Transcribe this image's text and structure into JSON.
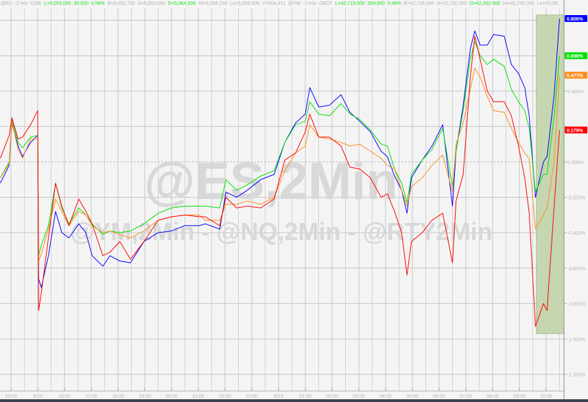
{
  "header": {
    "es": {
      "symbol": "@ES - 2 min",
      "exchange": "CME",
      "last": "L=6,053.000",
      "change": "35.000",
      "pct": "0.58%",
      "bid": "B=6,052.750",
      "ask": "A=6,053.000",
      "open": "O=5,964.000",
      "high": "Hi=6,058.250",
      "low": "Lo=5,959.000",
      "volume": "V=904,471"
    },
    "ym": {
      "symbol": "@YM - 2 min",
      "exchange": "CBOT",
      "last": "L=42,719.000",
      "change": "204.000",
      "pct": "0.48%",
      "bid": "B=42,718.000",
      "ask": "A=42,720.000",
      "open": "O=42,262.000",
      "high": "Hi=42,745.000",
      "low": "Lo=42,09..."
    }
  },
  "watermark": {
    "main": "@ES,2Min",
    "sub": "@YM,2Min - @NQ,2Min - @RTY2Min"
  },
  "chart_data": {
    "type": "line",
    "x_tick_labels": [
      "13:00",
      "6/22",
      "16:00",
      "17:00",
      "18:00",
      "19:00",
      "20:00",
      "21:00",
      "22:00",
      "23:00",
      "6/23",
      "01:00",
      "02:00",
      "03:00",
      "04:00",
      "05:00",
      "06:00",
      "07:00",
      "08:00",
      "09:00",
      "10:00"
    ],
    "y_ticks": [
      0.8,
      0.6,
      0.4,
      0.2,
      0.0,
      -0.2,
      -0.4,
      -0.6,
      -0.8,
      -1.0,
      -1.2
    ],
    "y_tick_labels": [
      "",
      "",
      "0.400%",
      "",
      "0.000%",
      "-0.200%",
      "-0.400%",
      "-0.600%",
      "-0.800%",
      "-1.000%",
      "-1.200%"
    ],
    "ylim": [
      -1.29,
      0.915
    ],
    "y_unit": "%",
    "grid": true,
    "highlight": {
      "from": "09:38",
      "to": "10:40",
      "top": 0.83,
      "bottom": -0.97,
      "color": "#c5d6b0"
    },
    "x": [
      "12:36",
      "12:56",
      "13:02",
      "13:16",
      "13:26",
      "13:44",
      "14:00",
      "15:02",
      "15:08",
      "15:24",
      "15:40",
      "15:54",
      "16:10",
      "16:32",
      "16:48",
      "17:02",
      "17:26",
      "17:42",
      "18:04",
      "18:28",
      "18:58",
      "19:30",
      "20:00",
      "20:30",
      "21:02",
      "21:16",
      "21:48",
      "22:02",
      "22:26",
      "22:50",
      "23:20",
      "23:50",
      "00:14",
      "00:38",
      "01:00",
      "01:10",
      "01:30",
      "01:54",
      "02:20",
      "02:40",
      "03:02",
      "03:26",
      "03:50",
      "04:04",
      "04:20",
      "04:36",
      "04:48",
      "04:58",
      "05:22",
      "05:44",
      "06:08",
      "06:30",
      "06:38",
      "06:54",
      "07:10",
      "07:20",
      "07:32",
      "07:48",
      "08:02",
      "08:26",
      "08:42",
      "08:58",
      "09:12",
      "09:22",
      "09:36",
      "09:54",
      "10:02",
      "10:18",
      "10:30"
    ],
    "series": [
      {
        "color": "#0000ff",
        "last_label": "0.806%",
        "values": [
          -0.12,
          -0.02,
          0.22,
          0.09,
          0.03,
          0.11,
          0.15,
          -0.66,
          -0.71,
          -0.53,
          -0.28,
          -0.4,
          -0.43,
          -0.35,
          -0.4,
          -0.53,
          -0.59,
          -0.53,
          -0.56,
          -0.57,
          -0.45,
          -0.4,
          -0.39,
          -0.36,
          -0.36,
          -0.35,
          -0.38,
          -0.17,
          -0.2,
          -0.16,
          -0.1,
          -0.07,
          0.11,
          0.22,
          0.27,
          0.42,
          0.31,
          0.32,
          0.38,
          0.28,
          0.23,
          0.17,
          0.06,
          0.03,
          -0.08,
          -0.16,
          -0.29,
          -0.09,
          0.01,
          0.09,
          0.21,
          -0.25,
          0.06,
          0.32,
          0.64,
          0.74,
          0.66,
          0.66,
          0.72,
          0.71,
          0.55,
          0.5,
          0.42,
          0.26,
          -0.2,
          0.0,
          0.03,
          0.38,
          0.81
        ]
      },
      {
        "color": "#00e000",
        "last_label": "0.698%",
        "values": [
          -0.09,
          0.0,
          0.24,
          0.11,
          0.08,
          0.14,
          0.15,
          -0.53,
          -0.47,
          -0.36,
          -0.12,
          -0.26,
          -0.35,
          -0.26,
          -0.3,
          -0.35,
          -0.41,
          -0.39,
          -0.4,
          -0.39,
          -0.35,
          -0.29,
          -0.26,
          -0.25,
          -0.25,
          -0.25,
          -0.26,
          -0.1,
          -0.16,
          -0.13,
          -0.08,
          -0.05,
          0.11,
          0.21,
          0.23,
          0.34,
          0.27,
          0.26,
          0.33,
          0.27,
          0.24,
          0.18,
          0.1,
          0.09,
          -0.04,
          -0.12,
          -0.23,
          -0.07,
          0.01,
          0.07,
          0.19,
          -0.14,
          0.06,
          0.29,
          0.58,
          0.68,
          0.6,
          0.55,
          0.58,
          0.54,
          0.41,
          0.34,
          0.29,
          0.19,
          -0.17,
          -0.07,
          -0.07,
          0.26,
          0.6
        ]
      },
      {
        "color": "#ff8c1a",
        "last_label": "0.477%",
        "values": [
          -0.09,
          -0.01,
          0.23,
          0.07,
          0.02,
          0.13,
          0.13,
          -0.56,
          -0.52,
          -0.38,
          -0.21,
          -0.28,
          -0.36,
          -0.28,
          -0.3,
          -0.36,
          -0.4,
          -0.39,
          -0.41,
          -0.43,
          -0.39,
          -0.33,
          -0.31,
          -0.3,
          -0.3,
          -0.33,
          -0.33,
          -0.24,
          -0.24,
          -0.22,
          -0.24,
          -0.2,
          -0.05,
          0.05,
          0.09,
          0.21,
          0.14,
          0.13,
          0.11,
          0.09,
          0.1,
          0.06,
          0.02,
          -0.02,
          -0.04,
          -0.16,
          -0.25,
          -0.14,
          -0.09,
          -0.02,
          0.04,
          -0.17,
          0.1,
          0.22,
          0.41,
          0.53,
          0.48,
          0.37,
          0.29,
          0.28,
          0.19,
          0.11,
          0.05,
          0.02,
          -0.38,
          -0.3,
          -0.26,
          0.01,
          0.49
        ]
      },
      {
        "color": "#ff0000",
        "last_label": "0.179%",
        "values": [
          0.02,
          0.15,
          0.25,
          0.13,
          0.14,
          0.21,
          0.29,
          -0.84,
          -0.74,
          -0.43,
          -0.12,
          -0.25,
          -0.36,
          -0.21,
          -0.28,
          -0.35,
          -0.53,
          -0.51,
          -0.45,
          -0.55,
          -0.45,
          -0.33,
          -0.31,
          -0.3,
          -0.31,
          -0.31,
          -0.36,
          -0.2,
          -0.26,
          -0.25,
          -0.26,
          -0.21,
          0.01,
          0.05,
          0.17,
          0.27,
          0.14,
          0.14,
          0.09,
          -0.03,
          -0.04,
          -0.09,
          -0.2,
          -0.18,
          -0.28,
          -0.4,
          -0.64,
          -0.45,
          -0.4,
          -0.33,
          -0.29,
          -0.57,
          -0.22,
          -0.07,
          0.48,
          0.71,
          0.58,
          0.4,
          0.34,
          0.34,
          0.26,
          0.09,
          -0.09,
          -0.29,
          -0.93,
          -0.8,
          -0.84,
          -0.25,
          0.18
        ]
      }
    ]
  }
}
